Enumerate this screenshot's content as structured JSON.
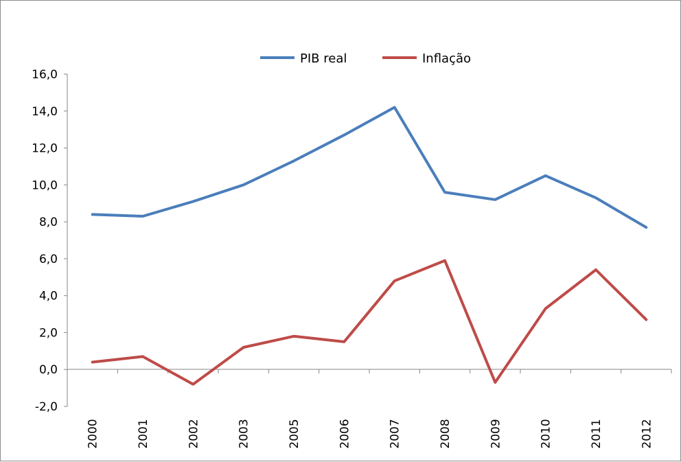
{
  "chart_data": {
    "type": "line",
    "categories": [
      "2000",
      "2001",
      "2002",
      "2003",
      "2005",
      "2006",
      "2007",
      "2008",
      "2009",
      "2010",
      "2011",
      "2012"
    ],
    "series": [
      {
        "name": "PIB real",
        "color": "#4a7ebb",
        "values": [
          8.4,
          8.3,
          9.1,
          10.0,
          11.3,
          12.7,
          14.2,
          9.6,
          9.2,
          10.5,
          9.3,
          7.7
        ]
      },
      {
        "name": "Inflação",
        "color": "#be4b48",
        "values": [
          0.4,
          0.7,
          -0.8,
          1.2,
          1.8,
          1.5,
          4.8,
          5.9,
          -0.7,
          3.3,
          5.4,
          2.7
        ]
      }
    ],
    "y_ticks": [
      "16,0",
      "14,0",
      "12,0",
      "10,0",
      "8,0",
      "6,0",
      "4,0",
      "2,0",
      "0,0",
      "-2,0"
    ],
    "ylim": [
      -2,
      16
    ],
    "legend_position": "top-center",
    "grid": false
  }
}
